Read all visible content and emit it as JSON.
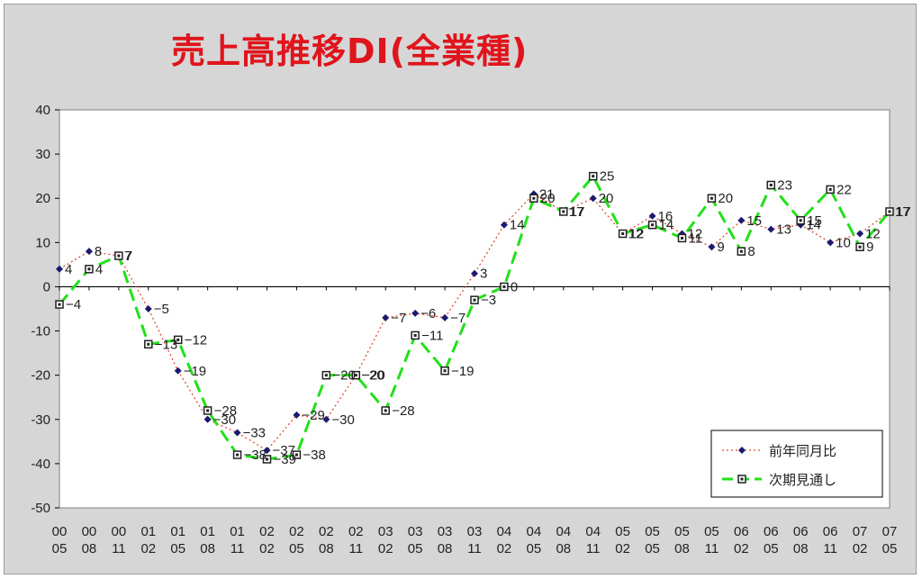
{
  "chart_data": {
    "type": "line",
    "title": "売上高推移DI(全業種)",
    "xlabel": "",
    "ylabel": "",
    "ylim": [
      -50,
      40
    ],
    "yticks": [
      40,
      30,
      20,
      10,
      0,
      -10,
      -20,
      -30,
      -40,
      -50
    ],
    "grid": false,
    "legend_position": "bottom-right",
    "categories": [
      [
        "00",
        "05"
      ],
      [
        "00",
        "08"
      ],
      [
        "00",
        "11"
      ],
      [
        "01",
        "02"
      ],
      [
        "01",
        "05"
      ],
      [
        "01",
        "08"
      ],
      [
        "01",
        "11"
      ],
      [
        "02",
        "02"
      ],
      [
        "02",
        "05"
      ],
      [
        "02",
        "08"
      ],
      [
        "02",
        "11"
      ],
      [
        "03",
        "02"
      ],
      [
        "03",
        "05"
      ],
      [
        "03",
        "08"
      ],
      [
        "03",
        "11"
      ],
      [
        "04",
        "02"
      ],
      [
        "04",
        "05"
      ],
      [
        "04",
        "08"
      ],
      [
        "04",
        "11"
      ],
      [
        "05",
        "02"
      ],
      [
        "05",
        "05"
      ],
      [
        "05",
        "08"
      ],
      [
        "05",
        "11"
      ],
      [
        "06",
        "02"
      ],
      [
        "06",
        "05"
      ],
      [
        "06",
        "08"
      ],
      [
        "06",
        "11"
      ],
      [
        "07",
        "02"
      ],
      [
        "07",
        "05"
      ]
    ],
    "series": [
      {
        "name": "前年同月比",
        "color": "#e04a3a",
        "marker_color": "#1a1a70",
        "style": "dotted",
        "values": [
          4,
          8,
          7,
          -5,
          -19,
          -30,
          -33,
          -37,
          -29,
          -30,
          -20,
          -7,
          -6,
          -7,
          3,
          14,
          21,
          17,
          20,
          12,
          16,
          12,
          9,
          15,
          13,
          14,
          10,
          12,
          17
        ]
      },
      {
        "name": "次期見通し",
        "color": "#22e01a",
        "marker_color": "#222222",
        "style": "dashed",
        "values": [
          -4,
          4,
          7,
          -13,
          -12,
          -28,
          -38,
          -39,
          -38,
          -20,
          -20,
          -28,
          -11,
          -19,
          -3,
          0,
          20,
          17,
          25,
          12,
          14,
          11,
          20,
          8,
          23,
          15,
          22,
          9,
          17
        ]
      }
    ]
  }
}
